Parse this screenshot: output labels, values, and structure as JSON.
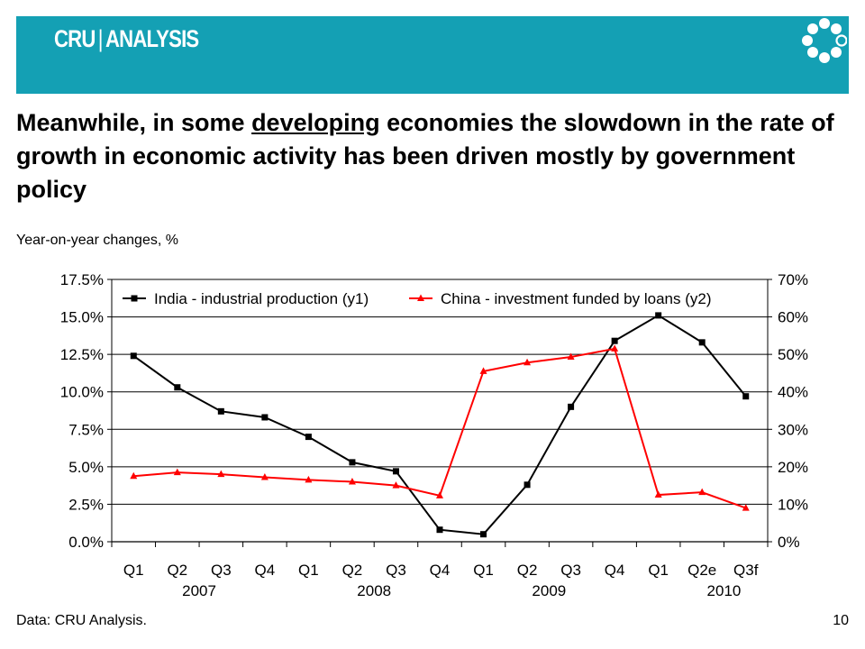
{
  "header": {
    "brand_left": "CRU",
    "brand_sep": "|",
    "brand_right": "ANALYSIS",
    "banner_color": "#14a0b4",
    "logo": "ring-of-dots-logo"
  },
  "headline": {
    "part1": "Meanwhile, in some ",
    "underlined": "developing",
    "part2": " economies the slowdown in the rate of growth in economic activity has been driven mostly by government policy"
  },
  "subtitle": "Year-on-year changes, %",
  "footer": {
    "source": "Data: CRU Analysis.",
    "page_number": "10"
  },
  "chart_data": {
    "type": "line",
    "categories": [
      "Q1",
      "Q2",
      "Q3",
      "Q4",
      "Q1",
      "Q2",
      "Q3",
      "Q4",
      "Q1",
      "Q2",
      "Q3",
      "Q4",
      "Q1",
      "Q2e",
      "Q3f"
    ],
    "year_labels": [
      "2007",
      "2008",
      "2009",
      "2010"
    ],
    "series": [
      {
        "name": "India - industrial production (y1)",
        "axis": "y1",
        "color": "#000000",
        "marker": "square",
        "values": [
          12.4,
          10.3,
          8.7,
          8.3,
          7.0,
          5.3,
          4.7,
          0.8,
          0.5,
          3.8,
          9.0,
          13.4,
          15.1,
          13.3,
          9.7
        ]
      },
      {
        "name": "China - investment funded by loans (y2)",
        "axis": "y2",
        "color": "#ff0000",
        "marker": "triangle",
        "values": [
          17.5,
          18.5,
          18.0,
          17.2,
          16.5,
          16.0,
          15.0,
          12.3,
          45.5,
          47.8,
          49.3,
          51.5,
          12.5,
          13.2,
          9.0
        ]
      }
    ],
    "y1": {
      "min": 0,
      "max": 17.5,
      "step": 2.5,
      "tick_labels": [
        "0.0%",
        "2.5%",
        "5.0%",
        "7.5%",
        "10.0%",
        "12.5%",
        "15.0%",
        "17.5%"
      ]
    },
    "y2": {
      "min": 0,
      "max": 70,
      "step": 10,
      "tick_labels": [
        "0%",
        "10%",
        "20%",
        "30%",
        "40%",
        "50%",
        "60%",
        "70%"
      ]
    },
    "grid": true,
    "legend_position": "top"
  }
}
